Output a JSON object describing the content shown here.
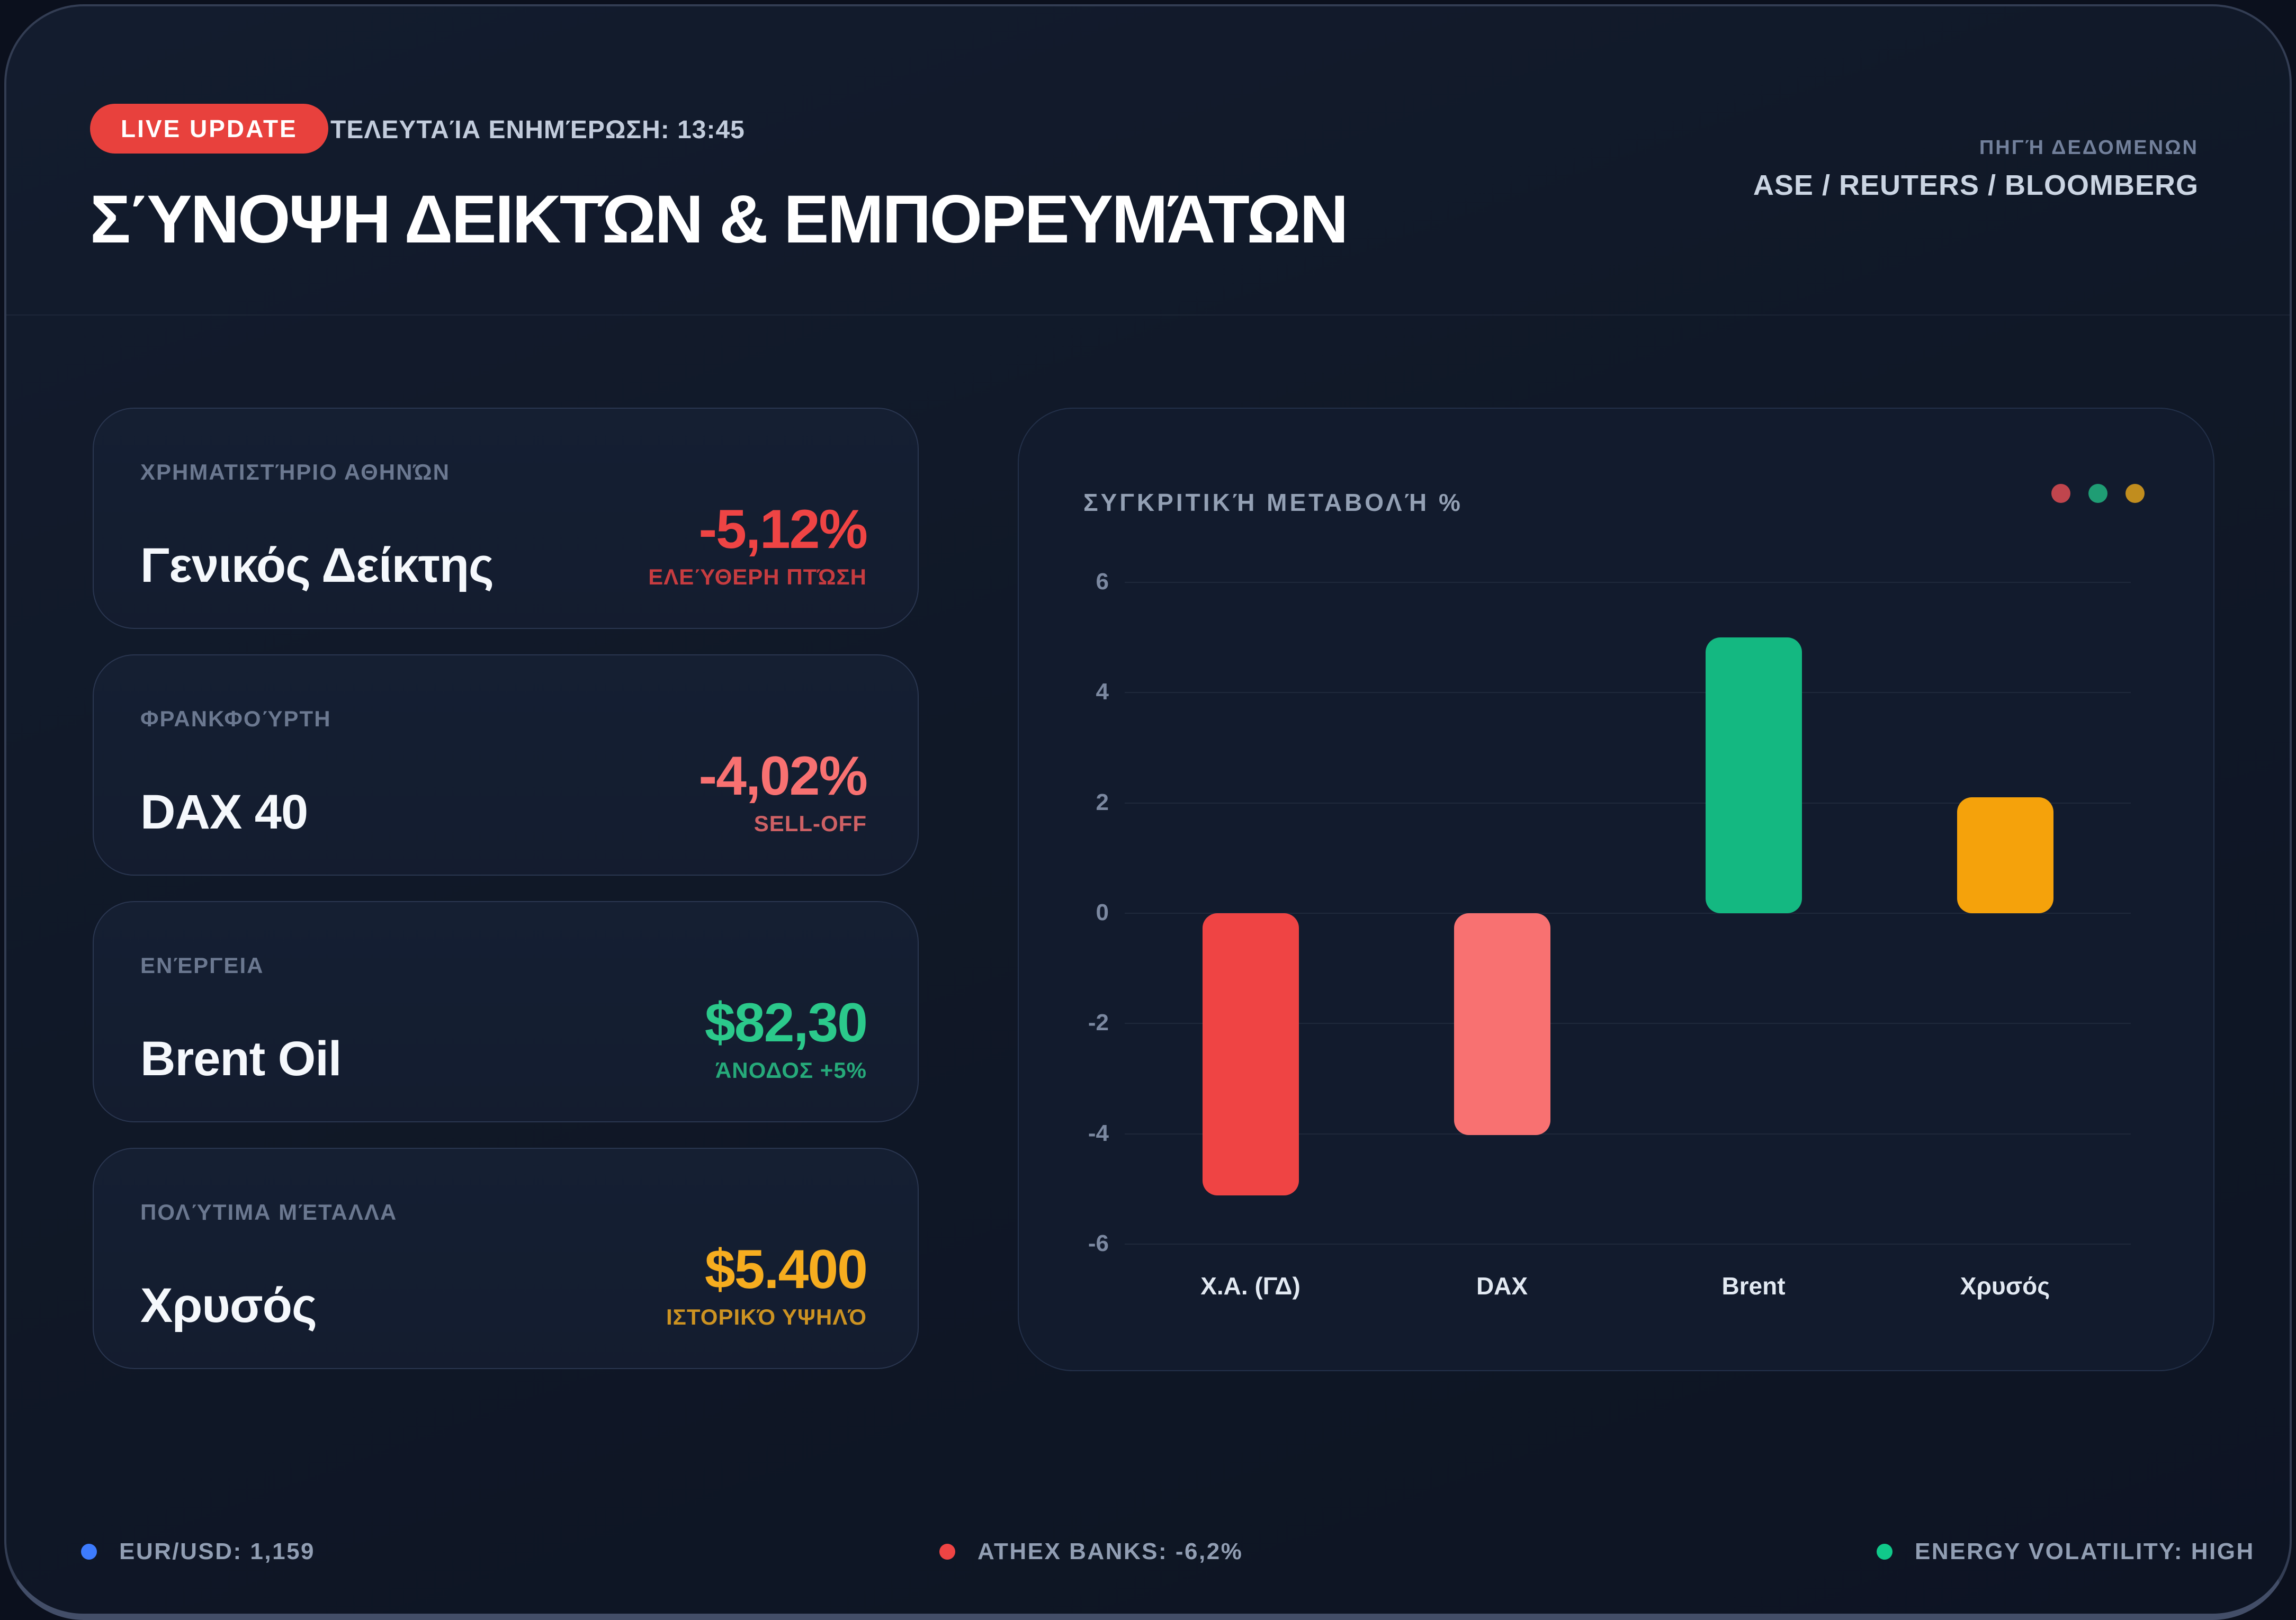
{
  "header": {
    "badge": "LIVE UPDATE",
    "badge_color": "#e8413d",
    "last_update": "ΤΕΛΕΥΤΑΊΑ ΕΝΗΜΈΡΩΣΗ: 13:45",
    "title": "ΣΎΝΟΨΗ ΔΕΙΚΤΏΝ & ΕΜΠΟΡΕΥΜΆΤΩΝ",
    "source_label": "ΠΗΓΉ ΔΕΔΟΜΕΝΩΝ",
    "source_value": "ASE / REUTERS / BLOOMBERG"
  },
  "cards": [
    {
      "label": "ΧΡΗΜΑΤΙΣΤΉΡΙΟ ΑΘΗΝΏΝ",
      "title": "Γενικός Δείκτης",
      "value": "-5,12%",
      "note": "ΕΛΕΎΘΕΡΗ ΠΤΏΣΗ",
      "color": "#ef4444"
    },
    {
      "label": "ΦΡΑΝΚΦΟΎΡΤΗ",
      "title": "DAX 40",
      "value": "-4,02%",
      "note": "SELL-OFF",
      "color": "#f87171"
    },
    {
      "label": "ΕΝΈΡΓΕΙΑ",
      "title": "Brent Oil",
      "value": "$82,30",
      "note": "ΆΝΟΔΟΣ +5%",
      "color": "#2bc98b"
    },
    {
      "label": "ΠΟΛΎΤΙΜΑ ΜΈΤΑΛΛΑ",
      "title": "Χρυσός",
      "value": "$5.400",
      "note": "ΙΣΤΟΡΙΚΌ ΥΨΗΛΌ",
      "color": "#f6ad1f"
    }
  ],
  "chart_data": {
    "type": "bar",
    "title": "ΣΥΓΚΡΙΤΙΚΉ ΜΕΤΑΒΟΛΉ %",
    "categories": [
      "Χ.Α. (ΓΔ)",
      "DAX",
      "Brent",
      "Χρυσός"
    ],
    "values": [
      -5.12,
      -4.02,
      5.0,
      2.1
    ],
    "bar_colors": [
      "#ef4444",
      "#f87171",
      "#14b881",
      "#f5a20b"
    ],
    "legend_dots": [
      "#c0454d",
      "#1f9d74",
      "#c18d1e"
    ],
    "ylim": [
      -6,
      6
    ],
    "yticks": [
      6,
      4,
      2,
      0,
      -2,
      -4,
      -6
    ],
    "grid": true,
    "xlabel": "",
    "ylabel": ""
  },
  "footer": [
    {
      "dot": "#3d7bfd",
      "text": "EUR/USD: 1,159"
    },
    {
      "dot": "#ef4444",
      "text": "ATHEX BANKS: -6,2%"
    },
    {
      "dot": "#10c98a",
      "text": "ENERGY VOLATILITY: HIGH"
    }
  ]
}
